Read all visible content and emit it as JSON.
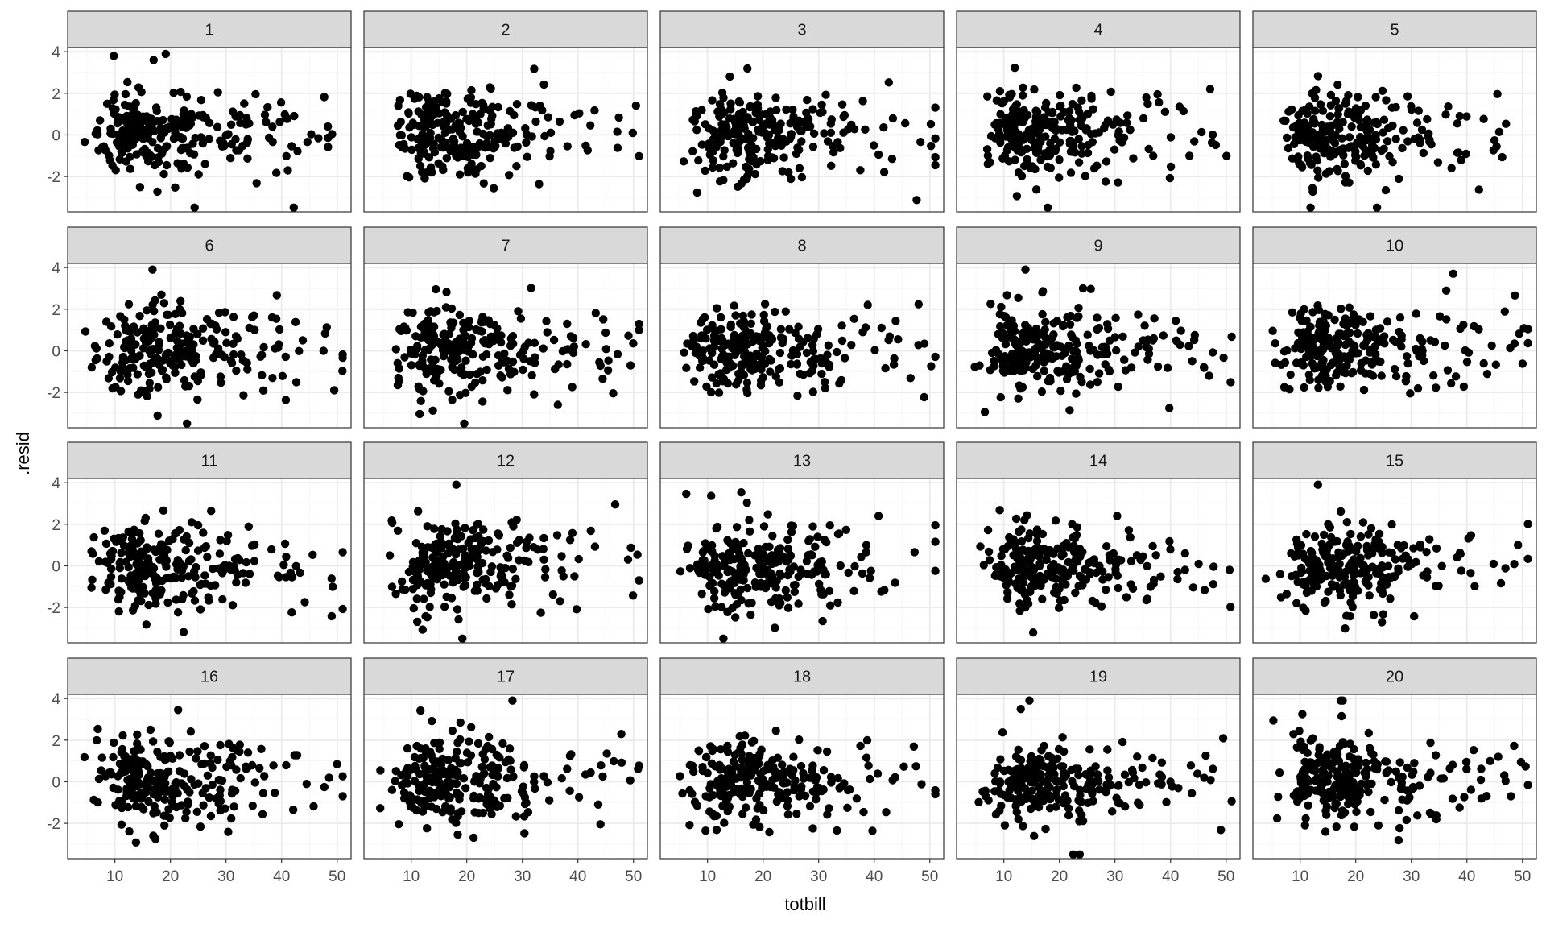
{
  "chart_data": {
    "type": "scatter",
    "facet_type": "small-multiples",
    "panel_labels": [
      "1",
      "2",
      "3",
      "4",
      "5",
      "6",
      "7",
      "8",
      "9",
      "10",
      "11",
      "12",
      "13",
      "14",
      "15",
      "16",
      "17",
      "18",
      "19",
      "20"
    ],
    "xlabel": "totbill",
    "ylabel": ".resid",
    "x_ticks": [
      "10",
      "20",
      "30",
      "40",
      "50"
    ],
    "y_ticks": [
      "4",
      "2",
      "0",
      "-2"
    ],
    "xlim": [
      1.5,
      52.5
    ],
    "ylim": [
      -3.7,
      4.2
    ],
    "points_per_panel": 244,
    "point_note": "each panel is a lineup residual scatter of about 244 points; positions are approximated from the visible distribution",
    "colors": {
      "point": "#000000",
      "strip_fill": "#d9d9d9",
      "strip_border": "#333333",
      "panel_border": "#333333",
      "grid_major": "#ebebeb",
      "grid_minor": "#f5f5f5",
      "text": "#4d4d4d"
    },
    "grid": true
  }
}
